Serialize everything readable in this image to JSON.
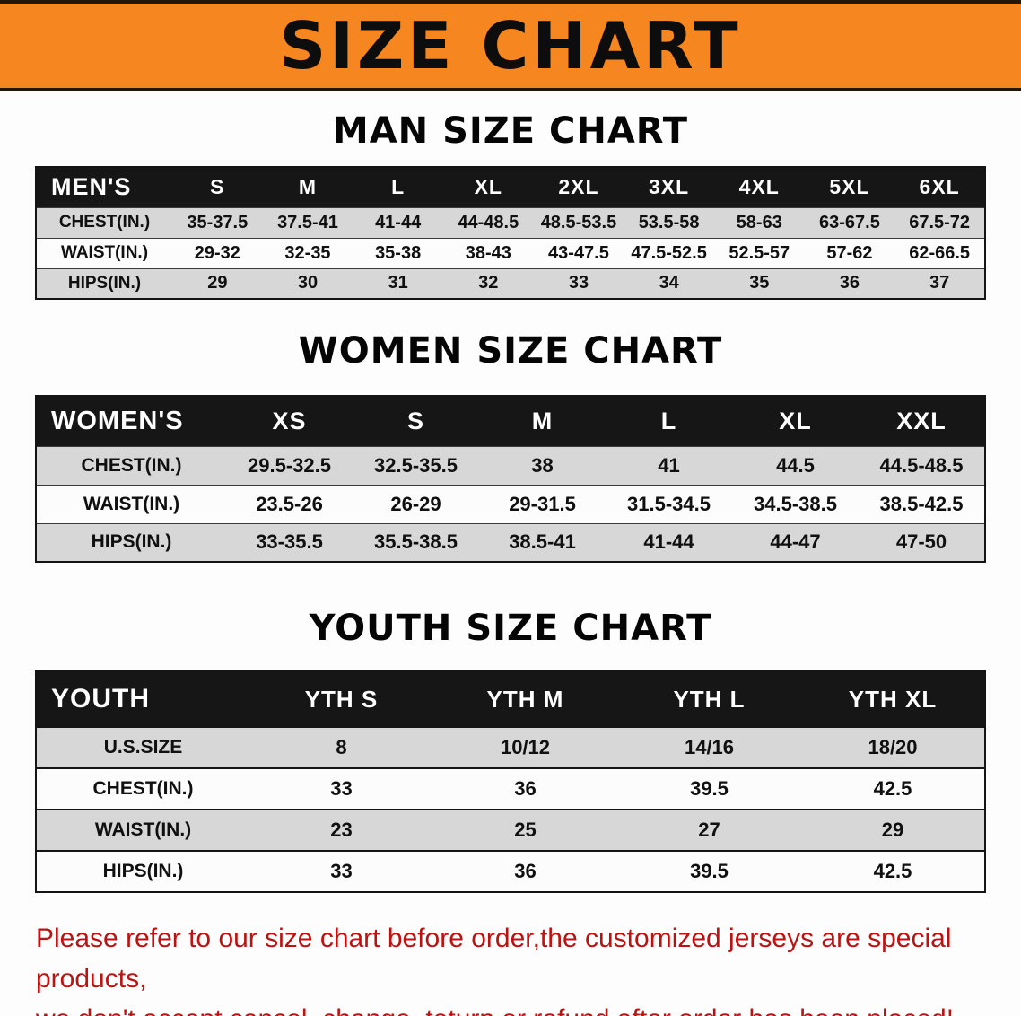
{
  "banner": {
    "title": "SIZE CHART",
    "bg_color": "#f6861f",
    "text_color": "#0d0d0d"
  },
  "colors": {
    "table_header_bg": "#161616",
    "table_header_text": "#ffffff",
    "stripe_row_bg": "#d7d7d7",
    "note_text": "#b81414"
  },
  "chart_data": [
    {
      "type": "table",
      "title": "MAN SIZE CHART",
      "columns": [
        "MEN'S",
        "S",
        "M",
        "L",
        "XL",
        "2XL",
        "3XL",
        "4XL",
        "5XL",
        "6XL"
      ],
      "rows": [
        [
          "CHEST(IN.)",
          "35-37.5",
          "37.5-41",
          "41-44",
          "44-48.5",
          "48.5-53.5",
          "53.5-58",
          "58-63",
          "63-67.5",
          "67.5-72"
        ],
        [
          "WAIST(IN.)",
          "29-32",
          "32-35",
          "35-38",
          "38-43",
          "43-47.5",
          "47.5-52.5",
          "52.5-57",
          "57-62",
          "62-66.5"
        ],
        [
          "HIPS(IN.)",
          "29",
          "30",
          "31",
          "32",
          "33",
          "34",
          "35",
          "36",
          "37"
        ]
      ]
    },
    {
      "type": "table",
      "title": "WOMEN SIZE CHART",
      "columns": [
        "WOMEN'S",
        "XS",
        "S",
        "M",
        "L",
        "XL",
        "XXL"
      ],
      "rows": [
        [
          "CHEST(IN.)",
          "29.5-32.5",
          "32.5-35.5",
          "38",
          "41",
          "44.5",
          "44.5-48.5"
        ],
        [
          "WAIST(IN.)",
          "23.5-26",
          "26-29",
          "29-31.5",
          "31.5-34.5",
          "34.5-38.5",
          "38.5-42.5"
        ],
        [
          "HIPS(IN.)",
          "33-35.5",
          "35.5-38.5",
          "38.5-41",
          "41-44",
          "44-47",
          "47-50"
        ]
      ]
    },
    {
      "type": "table",
      "title": "YOUTH SIZE CHART",
      "columns": [
        "YOUTH",
        "YTH S",
        "YTH M",
        "YTH L",
        "YTH XL"
      ],
      "rows": [
        [
          "U.S.SIZE",
          "8",
          "10/12",
          "14/16",
          "18/20"
        ],
        [
          "CHEST(IN.)",
          "33",
          "36",
          "39.5",
          "42.5"
        ],
        [
          "WAIST(IN.)",
          "23",
          "25",
          "27",
          "29"
        ],
        [
          "HIPS(IN.)",
          "33",
          "36",
          "39.5",
          "42.5"
        ]
      ]
    }
  ],
  "footer_note": {
    "lines": [
      "Please refer to our size chart before order,the customized jerseys are special products,",
      "we don't accept cancel, change, teturn or refund after order has been placed!"
    ]
  }
}
